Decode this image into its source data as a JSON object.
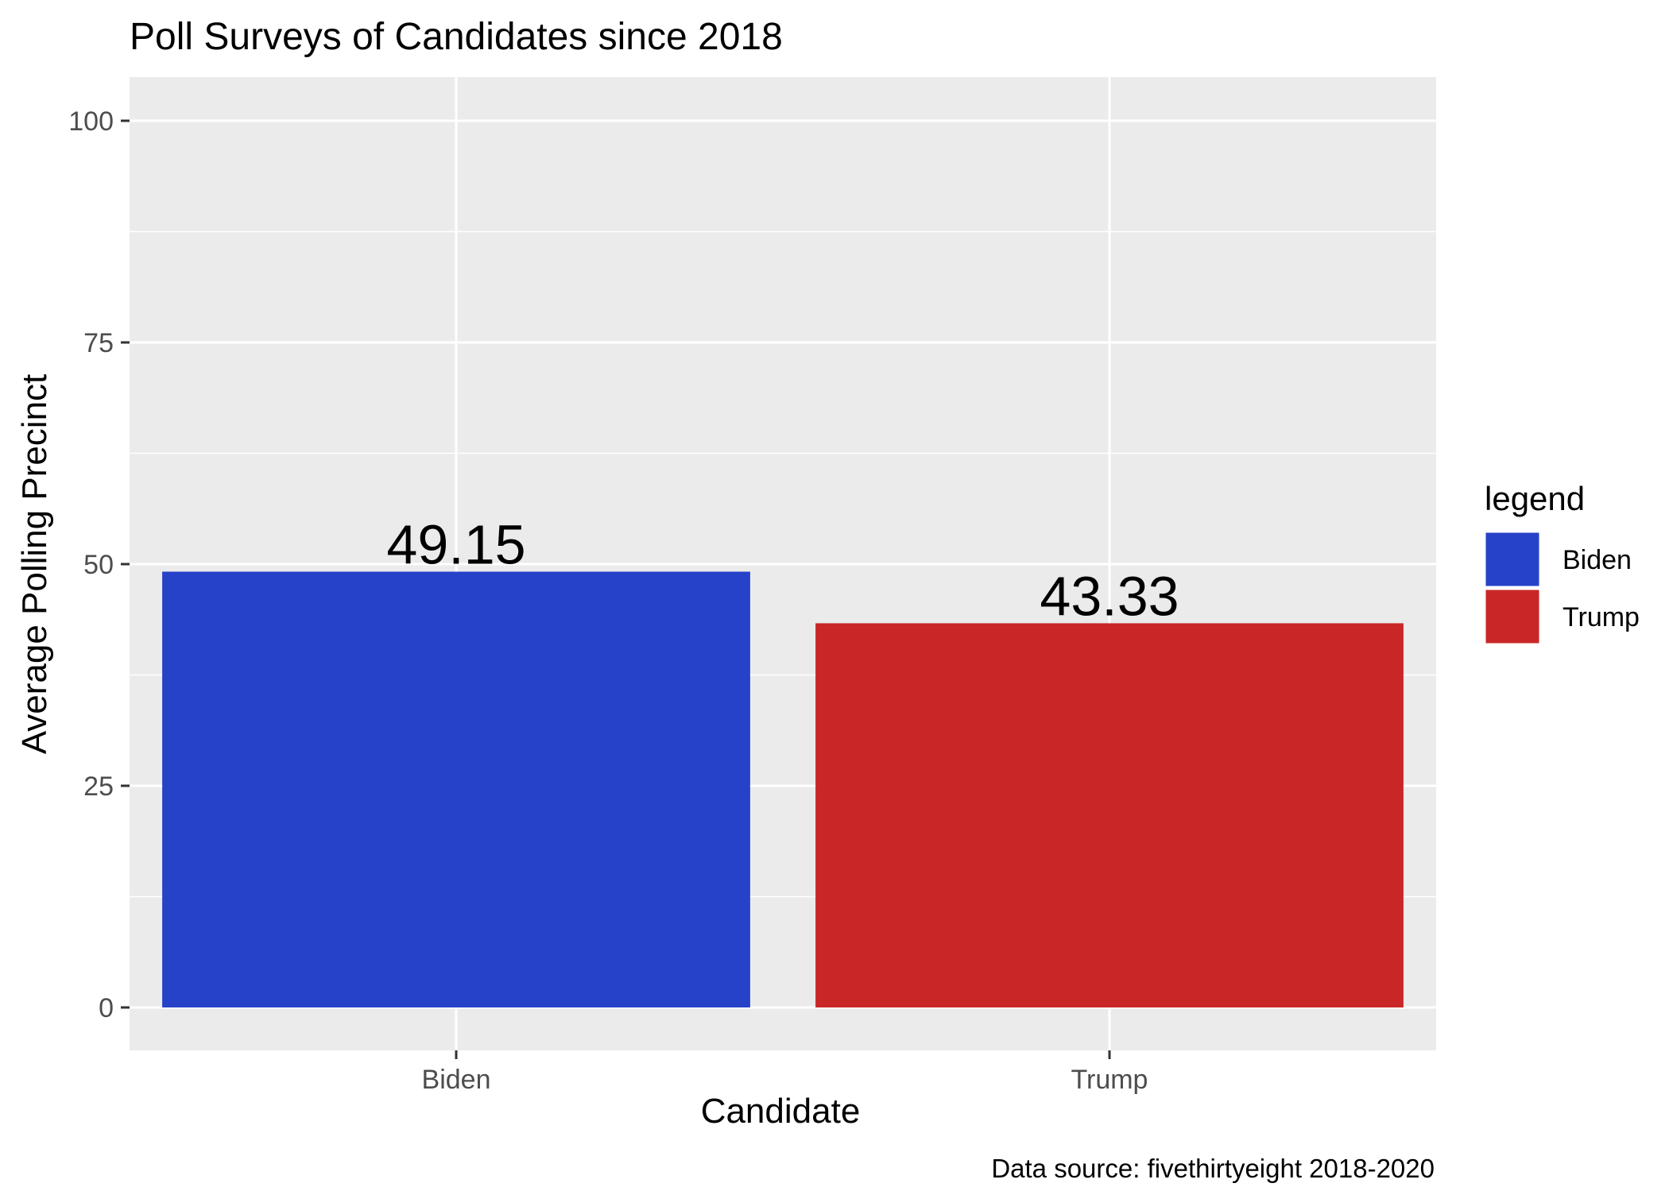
{
  "chart_data": {
    "type": "bar",
    "title": "Poll Surveys of Candidates since 2018",
    "xlabel": "Candidate",
    "ylabel": "Average Polling Precinct",
    "categories": [
      "Biden",
      "Trump"
    ],
    "values": [
      49.15,
      43.33
    ],
    "value_labels": [
      "49.15",
      "43.33"
    ],
    "colors": [
      "#2642c9",
      "#c92727"
    ],
    "ylim": [
      0,
      100
    ],
    "yticks": [
      0,
      25,
      50,
      75,
      100
    ],
    "ytick_labels": [
      "0",
      "25",
      "50",
      "75",
      "100"
    ],
    "grid": true,
    "legend": {
      "title": "legend",
      "position": "right",
      "items": [
        {
          "label": "Biden",
          "color": "#2642c9"
        },
        {
          "label": "Trump",
          "color": "#c92727"
        }
      ]
    },
    "caption": "Data source: fivethirtyeight 2018-2020"
  },
  "colors": {
    "panel_background": "#ebebeb",
    "grid": "#ffffff",
    "tick": "#333333"
  }
}
